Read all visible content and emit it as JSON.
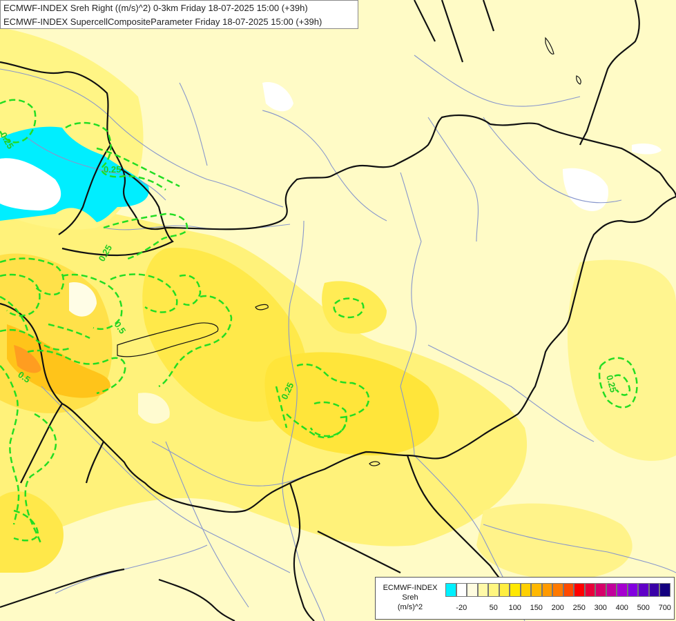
{
  "title_lines": [
    "ECMWF-INDEX Sreh Right ((m/s)^2) 0-3km Friday 18-07-2025 15:00 (+39h)",
    "ECMWF-INDEX SupercellCompositeParameter Friday 18-07-2025 15:00 (+39h)"
  ],
  "contour_labels": [
    "0.25",
    "0.25",
    "0.5",
    "0.5",
    "0.25",
    "0.25",
    "0.25"
  ],
  "legend": {
    "source": "ECMWF-INDEX",
    "variable": "Sreh",
    "unit": "(m/s)^2",
    "colors": [
      "#00f0ff",
      "#ffffff",
      "#fffce0",
      "#fff9a8",
      "#fff680",
      "#ffee40",
      "#ffe800",
      "#ffd000",
      "#ffb800",
      "#ff9a00",
      "#ff7a00",
      "#ff4a00",
      "#ff0000",
      "#e8003a",
      "#d6006a",
      "#c2009c",
      "#a600d0",
      "#8200e0",
      "#6000c8",
      "#3a00a8",
      "#140080"
    ],
    "ticks": [
      "-20",
      "50",
      "100",
      "150",
      "200",
      "250",
      "300",
      "400",
      "500",
      "700"
    ],
    "colors_note": "light-blue/white/pale-yellow to yellow, orange, red, magenta, purple, navy"
  }
}
